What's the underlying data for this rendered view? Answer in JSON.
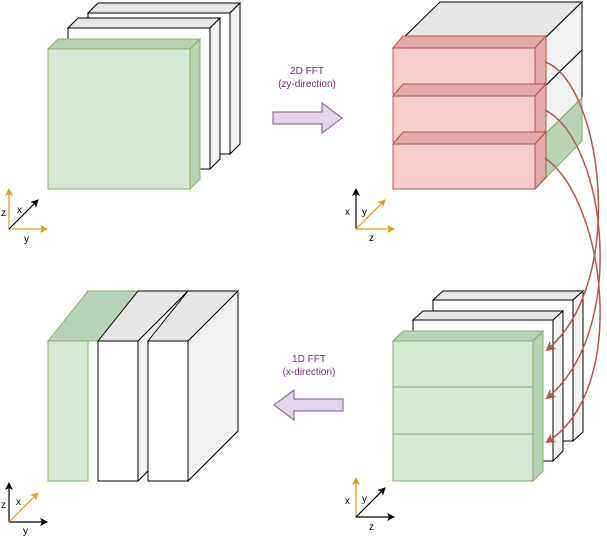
{
  "arrows": {
    "fft2d": {
      "line1": "2D FFT",
      "line2": "(zy-direction)"
    },
    "fft1d": {
      "line1": "1D FFT",
      "line2": "(x-direction)"
    }
  },
  "axes": {
    "top_left": {
      "vertical": "z",
      "diagonal": "x",
      "horizontal": "y"
    },
    "top_right": {
      "vertical": "x",
      "diagonal": "y",
      "horizontal": "z"
    },
    "bottom_left": {
      "vertical": "z",
      "diagonal": "x",
      "horizontal": "y"
    },
    "bottom_right": {
      "vertical": "x",
      "diagonal": "y",
      "horizontal": "z"
    }
  },
  "colors": {
    "green_face": "#d5e8d4",
    "green_side": "#b7d3b5",
    "green_stroke": "#82b366",
    "red_face": "#f8cecc",
    "red_side": "#e3a9a7",
    "red_stroke": "#b85450",
    "arrow_fill": "#e1d5e7",
    "arrow_stroke": "#9673a6",
    "axis_gold": "#d6a019"
  }
}
